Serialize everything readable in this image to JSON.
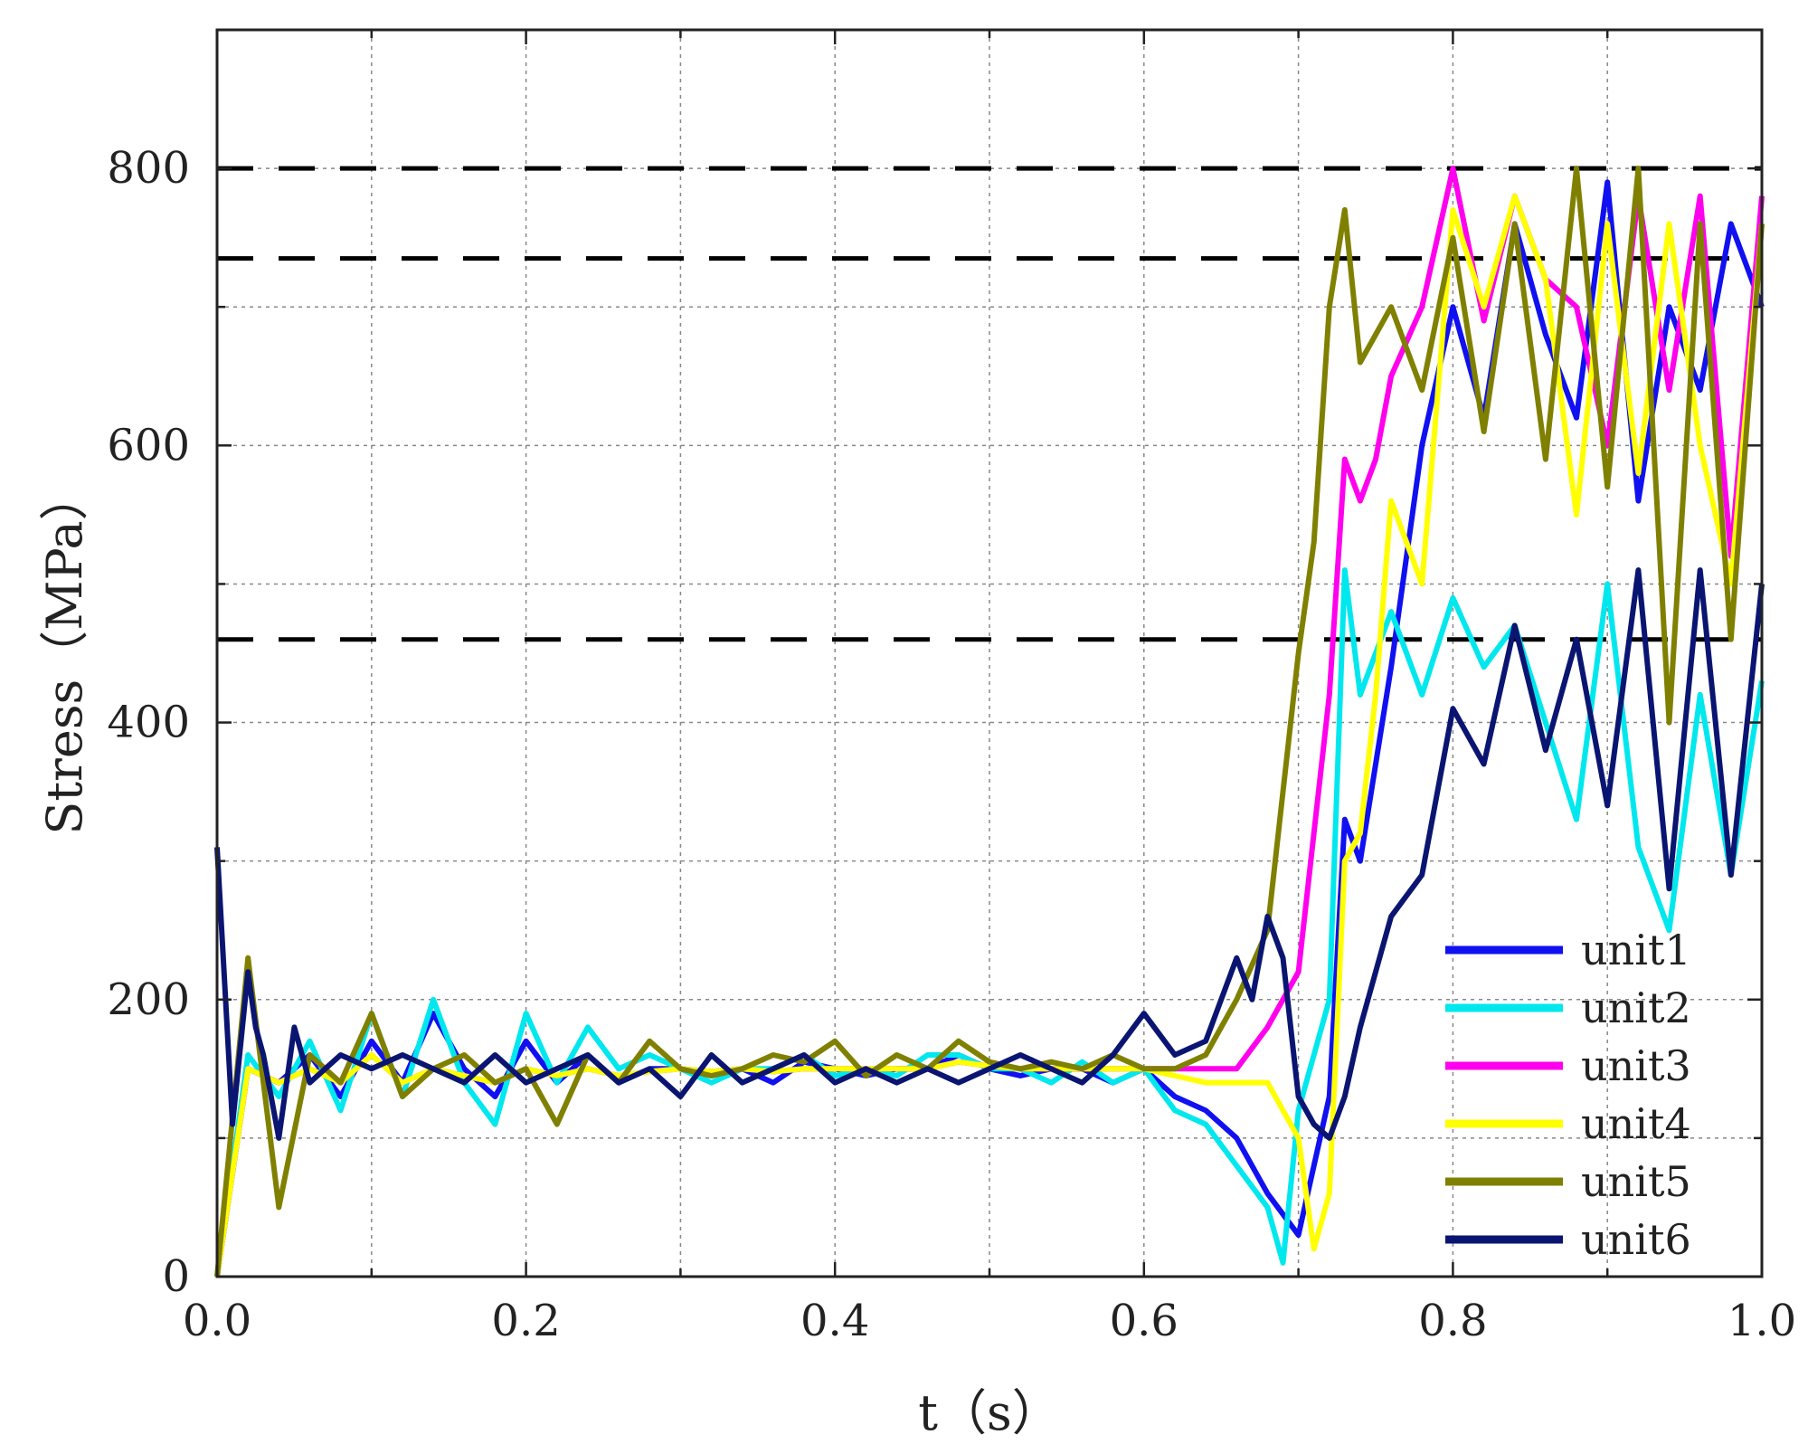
{
  "chart_data": {
    "type": "line",
    "title": "",
    "xlabel": "t（s）",
    "ylabel": "Stress（MPa）",
    "xlim": [
      0,
      1.0
    ],
    "ylim": [
      0,
      900
    ],
    "x_ticks": [
      0.0,
      0.2,
      0.4,
      0.6,
      0.8,
      1.0
    ],
    "x_tick_labels": [
      "0.0",
      "0.2",
      "0.4",
      "0.6",
      "0.8",
      "1.0"
    ],
    "y_ticks": [
      0,
      200,
      400,
      600,
      800
    ],
    "y_tick_labels": [
      "0",
      "200",
      "400",
      "600",
      "800"
    ],
    "grid": true,
    "legend_position": "bottom-right",
    "reference_lines": [
      {
        "y": 800,
        "style": "dashed",
        "color": "#000000"
      },
      {
        "y": 735,
        "style": "dashed",
        "color": "#000000"
      },
      {
        "y": 460,
        "style": "dashed",
        "color": "#000000"
      }
    ],
    "series": [
      {
        "name": "unit1",
        "color": "#1010f0",
        "x": [
          0.0,
          0.02,
          0.04,
          0.06,
          0.08,
          0.1,
          0.12,
          0.14,
          0.16,
          0.18,
          0.2,
          0.22,
          0.24,
          0.26,
          0.28,
          0.3,
          0.32,
          0.34,
          0.36,
          0.38,
          0.4,
          0.42,
          0.44,
          0.46,
          0.48,
          0.5,
          0.52,
          0.54,
          0.56,
          0.58,
          0.6,
          0.62,
          0.64,
          0.66,
          0.68,
          0.7,
          0.72,
          0.73,
          0.74,
          0.76,
          0.78,
          0.8,
          0.82,
          0.84,
          0.86,
          0.88,
          0.9,
          0.92,
          0.94,
          0.96,
          0.98,
          1.0
        ],
        "y": [
          0,
          150,
          140,
          160,
          130,
          170,
          140,
          190,
          150,
          130,
          170,
          140,
          160,
          140,
          150,
          150,
          145,
          150,
          140,
          155,
          150,
          145,
          150,
          150,
          160,
          150,
          145,
          150,
          150,
          140,
          150,
          130,
          120,
          100,
          60,
          30,
          130,
          330,
          300,
          440,
          600,
          700,
          620,
          760,
          680,
          620,
          790,
          560,
          700,
          640,
          760,
          700
        ]
      },
      {
        "name": "unit2",
        "color": "#00e8ee",
        "x": [
          0.0,
          0.02,
          0.04,
          0.06,
          0.08,
          0.1,
          0.12,
          0.14,
          0.16,
          0.18,
          0.2,
          0.22,
          0.24,
          0.26,
          0.28,
          0.3,
          0.32,
          0.34,
          0.36,
          0.38,
          0.4,
          0.42,
          0.44,
          0.46,
          0.48,
          0.5,
          0.52,
          0.54,
          0.56,
          0.58,
          0.6,
          0.62,
          0.64,
          0.66,
          0.68,
          0.69,
          0.7,
          0.72,
          0.73,
          0.74,
          0.76,
          0.78,
          0.8,
          0.82,
          0.84,
          0.86,
          0.88,
          0.9,
          0.92,
          0.94,
          0.96,
          0.98,
          1.0
        ],
        "y": [
          0,
          160,
          130,
          170,
          120,
          190,
          130,
          200,
          140,
          110,
          190,
          140,
          180,
          150,
          160,
          150,
          140,
          150,
          150,
          160,
          145,
          150,
          145,
          160,
          160,
          150,
          150,
          140,
          155,
          140,
          150,
          120,
          110,
          80,
          50,
          10,
          120,
          200,
          510,
          420,
          480,
          420,
          490,
          440,
          470,
          400,
          330,
          500,
          310,
          250,
          420,
          290,
          430
        ]
      },
      {
        "name": "unit3",
        "color": "#ff00ee",
        "x": [
          0.0,
          0.02,
          0.04,
          0.06,
          0.08,
          0.1,
          0.12,
          0.14,
          0.16,
          0.18,
          0.2,
          0.22,
          0.24,
          0.26,
          0.28,
          0.3,
          0.32,
          0.34,
          0.36,
          0.38,
          0.4,
          0.42,
          0.44,
          0.46,
          0.48,
          0.5,
          0.52,
          0.54,
          0.56,
          0.58,
          0.6,
          0.62,
          0.64,
          0.66,
          0.68,
          0.7,
          0.71,
          0.72,
          0.73,
          0.74,
          0.75,
          0.76,
          0.78,
          0.8,
          0.82,
          0.84,
          0.86,
          0.88,
          0.9,
          0.92,
          0.94,
          0.96,
          0.98,
          1.0
        ],
        "y": [
          0,
          150,
          140,
          150,
          140,
          160,
          140,
          150,
          145,
          140,
          150,
          145,
          150,
          145,
          148,
          150,
          148,
          150,
          148,
          150,
          150,
          150,
          150,
          150,
          155,
          152,
          150,
          150,
          150,
          150,
          150,
          150,
          150,
          150,
          180,
          220,
          320,
          420,
          590,
          560,
          590,
          650,
          700,
          800,
          690,
          780,
          720,
          700,
          600,
          780,
          640,
          780,
          520,
          780
        ]
      },
      {
        "name": "unit4",
        "color": "#ffff00",
        "x": [
          0.0,
          0.02,
          0.04,
          0.06,
          0.08,
          0.1,
          0.12,
          0.14,
          0.16,
          0.18,
          0.2,
          0.22,
          0.24,
          0.26,
          0.28,
          0.3,
          0.32,
          0.34,
          0.36,
          0.38,
          0.4,
          0.42,
          0.44,
          0.46,
          0.48,
          0.5,
          0.52,
          0.54,
          0.56,
          0.58,
          0.6,
          0.62,
          0.64,
          0.66,
          0.68,
          0.7,
          0.71,
          0.72,
          0.73,
          0.74,
          0.75,
          0.76,
          0.78,
          0.8,
          0.82,
          0.84,
          0.86,
          0.88,
          0.9,
          0.92,
          0.94,
          0.96,
          0.98,
          1.0
        ],
        "y": [
          0,
          150,
          140,
          150,
          140,
          160,
          140,
          150,
          145,
          140,
          150,
          145,
          150,
          145,
          148,
          150,
          148,
          150,
          148,
          150,
          150,
          150,
          150,
          150,
          155,
          152,
          150,
          150,
          150,
          150,
          150,
          145,
          140,
          140,
          140,
          100,
          20,
          60,
          300,
          320,
          420,
          560,
          500,
          770,
          700,
          780,
          720,
          550,
          760,
          580,
          760,
          600,
          500,
          760
        ]
      },
      {
        "name": "unit5",
        "color": "#808000",
        "x": [
          0.0,
          0.02,
          0.04,
          0.06,
          0.08,
          0.1,
          0.12,
          0.14,
          0.16,
          0.18,
          0.2,
          0.22,
          0.24,
          0.26,
          0.28,
          0.3,
          0.32,
          0.34,
          0.36,
          0.38,
          0.4,
          0.42,
          0.44,
          0.46,
          0.48,
          0.5,
          0.52,
          0.54,
          0.56,
          0.58,
          0.6,
          0.62,
          0.64,
          0.66,
          0.68,
          0.7,
          0.71,
          0.72,
          0.73,
          0.74,
          0.76,
          0.78,
          0.8,
          0.82,
          0.84,
          0.86,
          0.88,
          0.9,
          0.92,
          0.94,
          0.96,
          0.98,
          1.0
        ],
        "y": [
          0,
          230,
          50,
          160,
          140,
          190,
          130,
          150,
          160,
          140,
          150,
          110,
          160,
          140,
          170,
          150,
          145,
          150,
          160,
          155,
          170,
          145,
          160,
          150,
          170,
          155,
          150,
          155,
          150,
          160,
          150,
          150,
          160,
          200,
          250,
          450,
          530,
          700,
          770,
          660,
          700,
          640,
          750,
          610,
          760,
          590,
          800,
          570,
          800,
          400,
          760,
          460,
          760
        ]
      },
      {
        "name": "unit6",
        "color": "#0a1572",
        "x": [
          0.0,
          0.01,
          0.02,
          0.025,
          0.03,
          0.04,
          0.05,
          0.06,
          0.08,
          0.1,
          0.12,
          0.14,
          0.16,
          0.18,
          0.2,
          0.22,
          0.24,
          0.26,
          0.28,
          0.3,
          0.32,
          0.34,
          0.36,
          0.38,
          0.4,
          0.42,
          0.44,
          0.46,
          0.48,
          0.5,
          0.52,
          0.54,
          0.56,
          0.58,
          0.6,
          0.62,
          0.64,
          0.66,
          0.67,
          0.68,
          0.69,
          0.7,
          0.71,
          0.72,
          0.73,
          0.74,
          0.76,
          0.78,
          0.8,
          0.82,
          0.84,
          0.86,
          0.88,
          0.9,
          0.92,
          0.94,
          0.96,
          0.98,
          1.0
        ],
        "y": [
          310,
          110,
          220,
          180,
          160,
          100,
          180,
          140,
          160,
          150,
          160,
          150,
          140,
          160,
          140,
          150,
          160,
          140,
          150,
          130,
          160,
          140,
          150,
          160,
          140,
          150,
          140,
          150,
          140,
          150,
          160,
          150,
          140,
          160,
          190,
          160,
          170,
          230,
          200,
          260,
          230,
          130,
          110,
          100,
          130,
          180,
          260,
          290,
          410,
          370,
          470,
          380,
          460,
          340,
          510,
          280,
          510,
          290,
          500
        ]
      }
    ]
  }
}
